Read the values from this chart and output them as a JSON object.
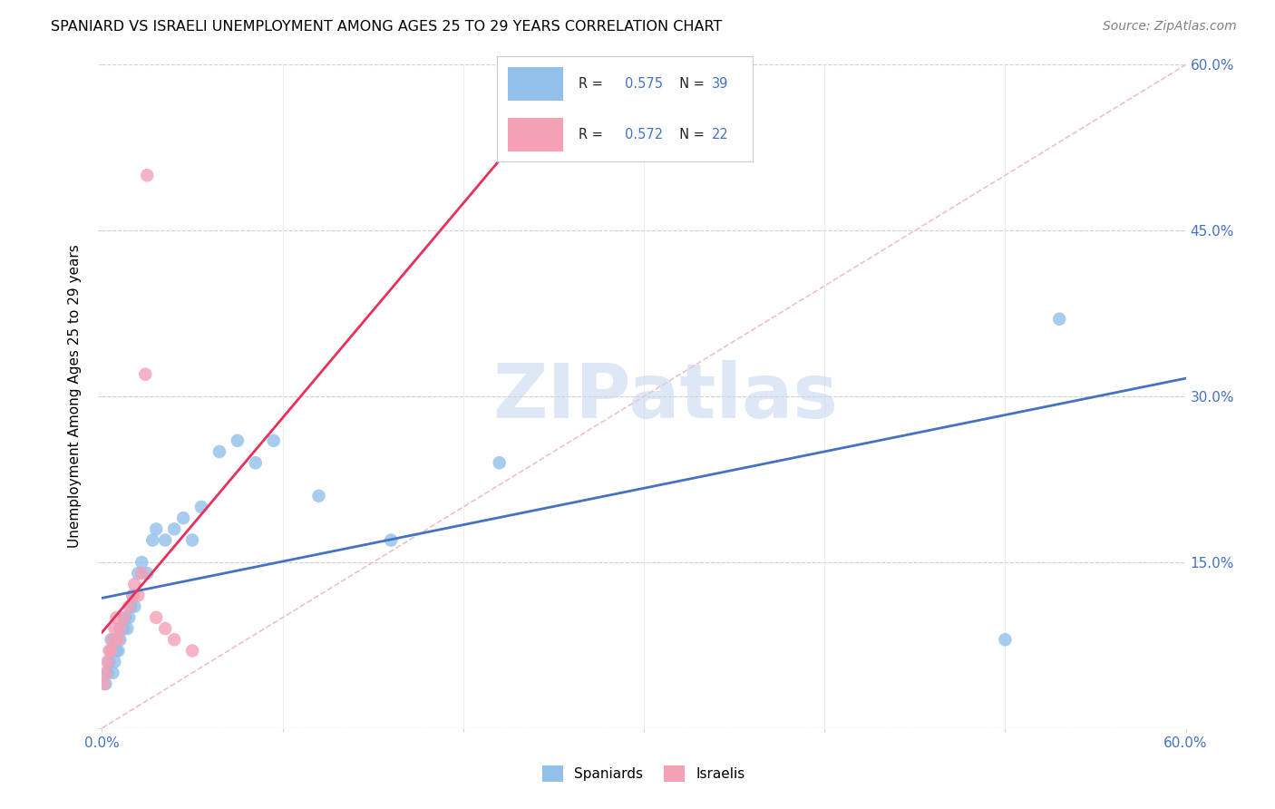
{
  "title": "SPANIARD VS ISRAELI UNEMPLOYMENT AMONG AGES 25 TO 29 YEARS CORRELATION CHART",
  "source": "Source: ZipAtlas.com",
  "ylabel": "Unemployment Among Ages 25 to 29 years",
  "xlim": [
    0.0,
    0.6
  ],
  "ylim": [
    0.0,
    0.6
  ],
  "xticks": [
    0.0,
    0.1,
    0.2,
    0.3,
    0.4,
    0.5,
    0.6
  ],
  "yticks": [
    0.0,
    0.15,
    0.3,
    0.45,
    0.6
  ],
  "ytick_labels": [
    "",
    "15.0%",
    "30.0%",
    "45.0%",
    "60.0%"
  ],
  "spaniard_color": "#92C0EA",
  "israeli_color": "#F4A0B5",
  "spaniard_line_color": "#4472C4",
  "israeli_line_color": "#E8305A",
  "diag_color": "#F0C0C8",
  "watermark_text": "ZIPatlas",
  "watermark_color": "#C8D8F0",
  "legend_text_color": "#4472C4",
  "legend_label_color": "#222222",
  "spaniard_x": [
    0.002,
    0.003,
    0.004,
    0.005,
    0.005,
    0.006,
    0.007,
    0.008,
    0.008,
    0.009,
    0.01,
    0.01,
    0.011,
    0.012,
    0.013,
    0.014,
    0.015,
    0.016,
    0.017,
    0.018,
    0.02,
    0.022,
    0.025,
    0.028,
    0.03,
    0.035,
    0.04,
    0.045,
    0.05,
    0.055,
    0.065,
    0.075,
    0.085,
    0.095,
    0.12,
    0.16,
    0.22,
    0.5,
    0.53
  ],
  "spaniard_y": [
    0.04,
    0.05,
    0.06,
    0.07,
    0.08,
    0.05,
    0.06,
    0.07,
    0.08,
    0.07,
    0.08,
    0.09,
    0.09,
    0.09,
    0.1,
    0.09,
    0.1,
    0.11,
    0.12,
    0.11,
    0.14,
    0.15,
    0.14,
    0.17,
    0.18,
    0.17,
    0.18,
    0.19,
    0.17,
    0.2,
    0.25,
    0.26,
    0.24,
    0.26,
    0.21,
    0.17,
    0.24,
    0.08,
    0.37
  ],
  "israeli_x": [
    0.001,
    0.002,
    0.003,
    0.004,
    0.005,
    0.006,
    0.007,
    0.008,
    0.009,
    0.01,
    0.012,
    0.015,
    0.017,
    0.018,
    0.02,
    0.022,
    0.024,
    0.025,
    0.03,
    0.035,
    0.04,
    0.05
  ],
  "israeli_y": [
    0.04,
    0.05,
    0.06,
    0.07,
    0.07,
    0.08,
    0.09,
    0.1,
    0.08,
    0.09,
    0.1,
    0.11,
    0.12,
    0.13,
    0.12,
    0.14,
    0.32,
    0.5,
    0.1,
    0.09,
    0.08,
    0.07
  ]
}
